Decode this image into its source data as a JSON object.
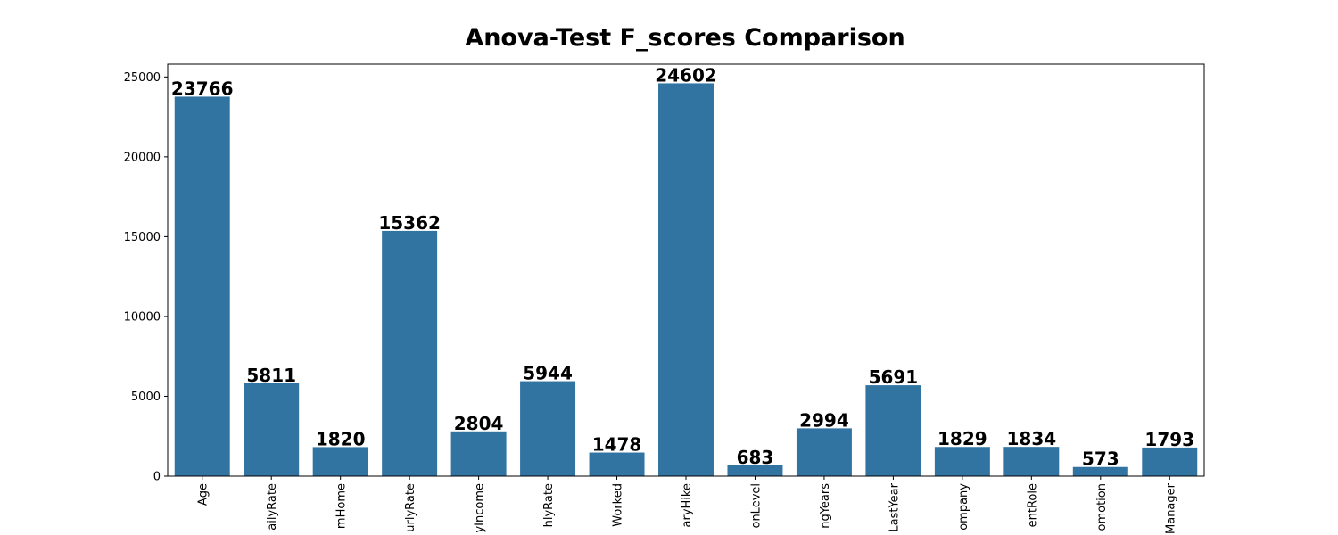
{
  "chart_data": {
    "type": "bar",
    "title": "Anova-Test F_scores Comparison",
    "xlabel": "",
    "ylabel": "",
    "ylim": [
      0,
      25800
    ],
    "yticks": [
      0,
      5000,
      10000,
      15000,
      20000,
      25000
    ],
    "grid": false,
    "bar_color": "#3274a1",
    "categories": [
      "Age",
      "ailyRate",
      "mHome",
      "urlyRate",
      "yIncome",
      "hlyRate",
      "Worked",
      "aryHike",
      "onLevel",
      "ngYears",
      "LastYear",
      "ompany",
      "entRole",
      "omotion",
      "Manager"
    ],
    "values": [
      23766,
      5811,
      1820,
      15362,
      2804,
      5944,
      1478,
      24602,
      683,
      2994,
      5691,
      1829,
      1834,
      573,
      1793
    ],
    "data_labels": [
      "23766",
      "5811",
      "1820",
      "15362",
      "2804",
      "5944",
      "1478",
      "24602",
      "683",
      "2994",
      "5691",
      "1829",
      "1834",
      "573",
      "1793"
    ]
  }
}
